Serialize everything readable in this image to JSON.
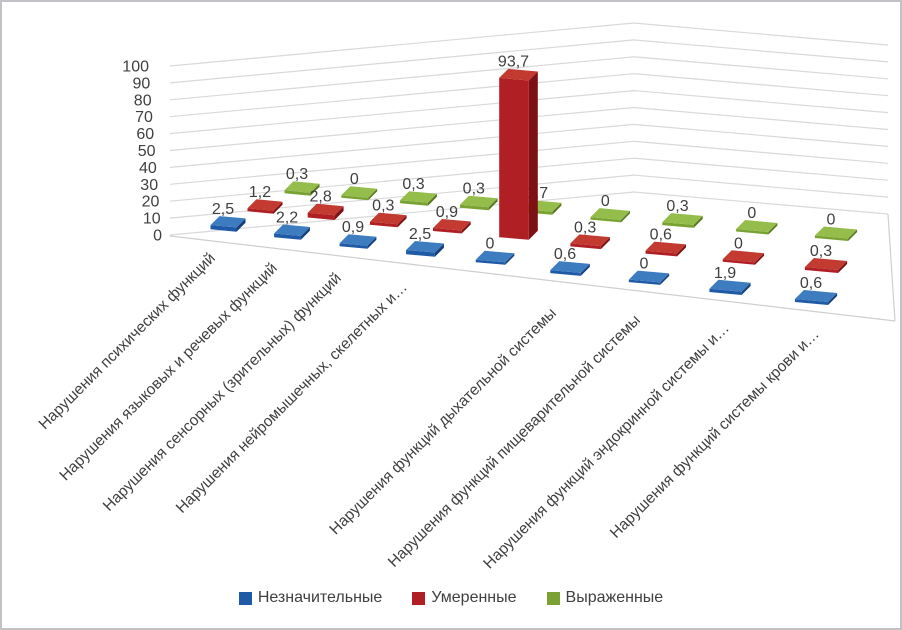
{
  "page": {
    "background": "#FFFFFF",
    "frame_border_color": "#C2C2C6",
    "text_color": "#404040",
    "gridline_color": "#D9D9D9"
  },
  "chart_data": {
    "type": "bar",
    "style": "3d-clustered-column",
    "title": "",
    "xlabel": "",
    "ylabel": "",
    "ylim": [
      0,
      100
    ],
    "yticks": [
      "0",
      "10",
      "20",
      "30",
      "40",
      "50",
      "60",
      "70",
      "80",
      "90",
      "100"
    ],
    "grid": true,
    "legend_position": "bottom",
    "categories": [
      "Нарушения психических функций",
      "Нарушения языковых и речевых функций",
      "Нарушения сенсорных (зрительных) функций",
      "Нарушения нейромышечных, скелетных и…",
      "",
      "Нарушения функций дыхательной системы",
      "Нарушения функций пищеварительной системы",
      "Нарушения функций эндокринной системы и…",
      "Нарушения функций системы крови и…"
    ],
    "series": [
      {
        "name": "Незначительные",
        "color": "#1F5AA7",
        "values": [
          2.5,
          2.2,
          0.9,
          2.5,
          0,
          0.6,
          0,
          1.9,
          0.6
        ],
        "labels": [
          "2,5",
          "2,2",
          "0,9",
          "2,5",
          "0",
          "0,6",
          "0",
          "1,9",
          "0,6"
        ]
      },
      {
        "name": "Умеренные",
        "color": "#B01F24",
        "values": [
          1.2,
          2.8,
          0.3,
          0.9,
          93.7,
          0.3,
          0.6,
          0,
          0.3
        ],
        "labels": [
          "1,2",
          "2,8",
          "0,3",
          "0,9",
          "93,7",
          "0,3",
          "0,6",
          "0",
          "0,3"
        ]
      },
      {
        "name": "Выраженные",
        "color": "#7AA233",
        "values": [
          0.3,
          0,
          0.3,
          0.3,
          1.7,
          0,
          0.3,
          0,
          0
        ],
        "labels": [
          "0,3",
          "0",
          "0,3",
          "0,3",
          "1,7",
          "0",
          "0,3",
          "0",
          "0"
        ]
      }
    ]
  }
}
